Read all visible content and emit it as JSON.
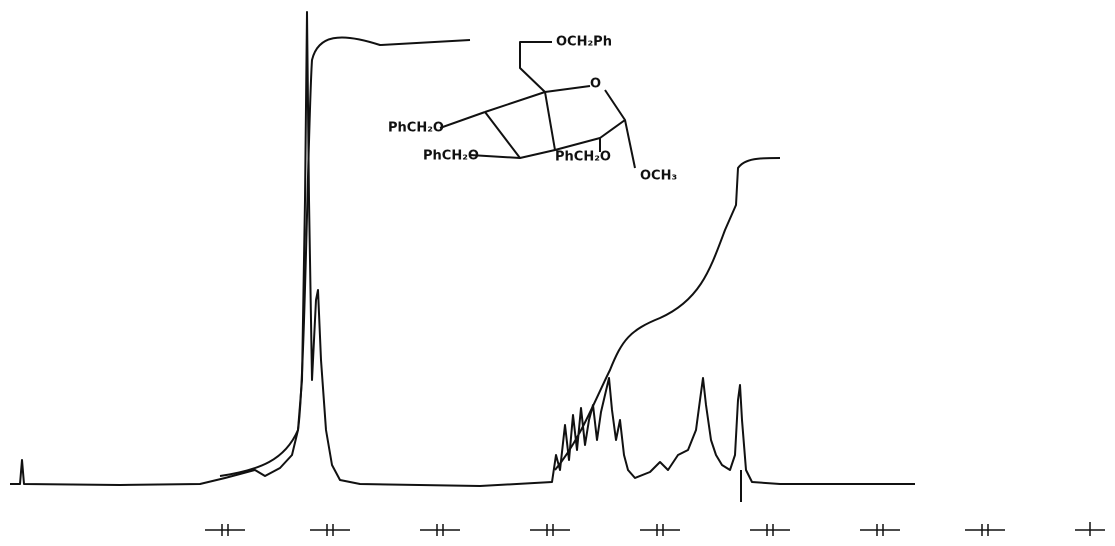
{
  "structure": {
    "labels": [
      "OCH₂Ph",
      "O",
      "PhCH₂O",
      "PhCH₂O",
      "PhCH₂O",
      "OCH₃"
    ]
  }
}
